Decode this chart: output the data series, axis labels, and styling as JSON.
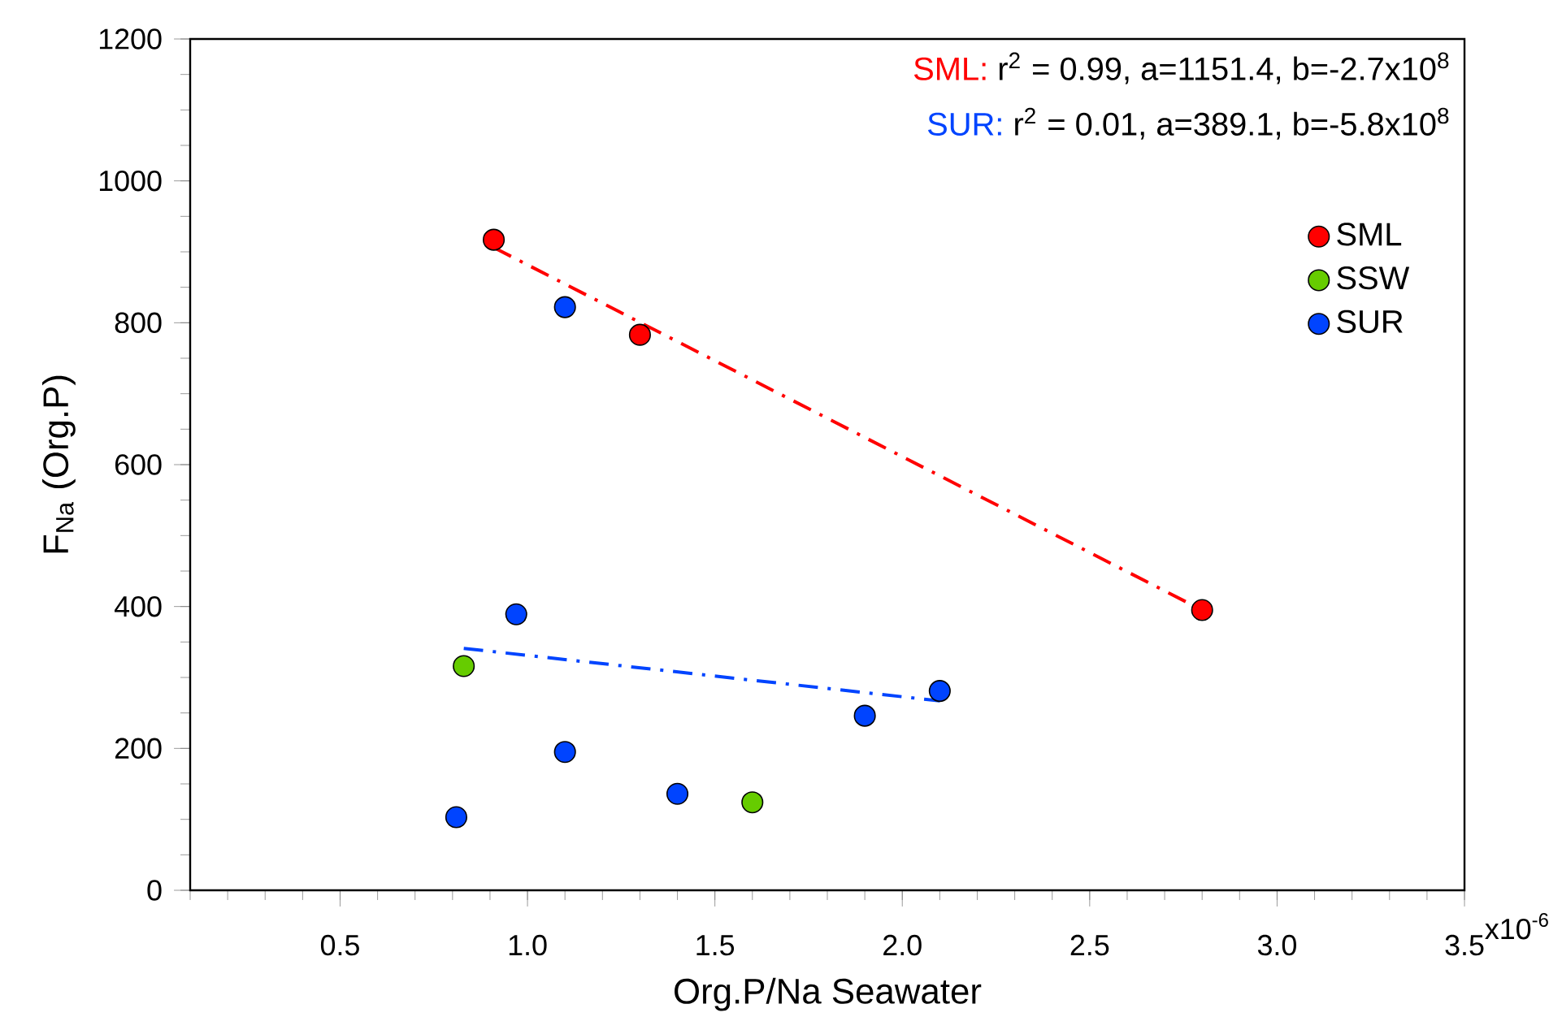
{
  "chart_data": {
    "type": "scatter",
    "xlabel": "Org.P/Na Seawater",
    "ylabel": "F$_{Na}$ (Org.P)",
    "xlim": [
      0.1,
      3.5
    ],
    "xticks": [
      0.5,
      {
        "value": 1.0,
        "label": "1.0"
      },
      1.5,
      {
        "value": 2.0,
        "label": "2.0"
      },
      2.5,
      {
        "value": 3.0,
        "label": "3.0"
      },
      3.5
    ],
    "ylim": [
      0,
      1200
    ],
    "yticks": [
      0,
      200,
      400,
      600,
      800,
      1000,
      1200
    ],
    "marker": "circle",
    "legend": "top right",
    "grid": false,
    "annotations": [
      "SML:",
      "r$^{2}$ = 0.99, a=1151.4, b=-2.7x10$^{8}$",
      "SUR:",
      "r$^{2}$ = 0.01, a=389.1, b=-5.8x10$^{8}$",
      "x10$^{-6}$"
    ],
    "series": [
      {
        "name": "SML",
        "color": "#ff0000",
        "x": [
          0.91,
          1.3,
          2.8
        ],
        "values": [
          917,
          783,
          395
        ]
      },
      {
        "name": "SSW",
        "color": "#66cc00",
        "x": [
          0.83,
          1.6
        ],
        "values": [
          316,
          124
        ]
      },
      {
        "name": "SUR",
        "color": "#0044ff",
        "x": [
          1.1,
          0.97,
          1.1,
          0.81,
          1.4,
          1.9,
          2.1
        ],
        "values": [
          822,
          389,
          195,
          103,
          136,
          246,
          281
        ]
      },
      {
        "type": "line",
        "marker": "none",
        "line_style": "dashdot",
        "color": "#ff0000",
        "x": [
          0.91,
          2.8
        ],
        "values": [
          906,
          395
        ]
      },
      {
        "type": "line",
        "marker": "none",
        "line_style": "dashdot",
        "color": "#0044ff",
        "x": [
          0.83,
          2.1
        ],
        "values": [
          341,
          267
        ]
      }
    ]
  }
}
